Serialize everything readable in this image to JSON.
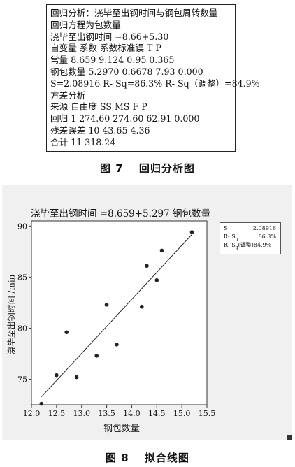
{
  "regression_output": {
    "lines": [
      "回归分析：浇毕至出钢时间与钢包周转数量",
      "回归方程为包数量",
      "浇毕至出钢时间 =8.66+5.30",
      "自变量 系数 系数标准误 T P",
      "常量 8.659 9.124 0.95 0.365",
      "钢包数量 5.2970 0.6678 7.93 0.000",
      "S=2.08916 R- Sq=86.3% R- Sq（调整）=84.9%",
      "方差分析",
      "来源 自由度 SS MS F P",
      "回归 1 274.60 274.60 62.91 0.000",
      "残差误差 10 43.65 4.36",
      "合计 11 318.24"
    ]
  },
  "figure7_caption": "图 7　 回归分析图",
  "figure8_caption": "图 8　 拟合线图",
  "plot": {
    "title": "浇毕至出钢时间 =8.659+5.297 钢包数量",
    "stats": [
      {
        "label": "S",
        "value": "2.08916"
      },
      {
        "label": "R- S",
        "sub": "q",
        "value": "86.3%"
      },
      {
        "label": "R- S",
        "sub": "q",
        "suffix": "(调整)",
        "value": "84.9%"
      }
    ]
  },
  "chart_data": {
    "type": "scatter",
    "title": "浇毕至出钢时间 =8.659+5.297 钢包数量",
    "xlabel": "钢包数量",
    "ylabel": "浇毕至出钢时间 /min",
    "xlim": [
      12.0,
      15.5
    ],
    "ylim": [
      72.5,
      90.5
    ],
    "xticks": [
      12.0,
      12.5,
      13.0,
      13.5,
      14.0,
      14.5,
      15.0,
      15.5
    ],
    "xtick_labels": [
      "12.0",
      "12.5",
      "13.0",
      "13.5",
      "14.0",
      "14.5",
      "15.0",
      "15.5"
    ],
    "yticks": [
      75,
      80,
      85,
      90
    ],
    "ytick_labels": [
      "75",
      "80",
      "85",
      "90"
    ],
    "points": [
      {
        "x": 12.2,
        "y": 72.6
      },
      {
        "x": 12.5,
        "y": 75.4
      },
      {
        "x": 12.7,
        "y": 79.6
      },
      {
        "x": 12.9,
        "y": 75.2
      },
      {
        "x": 13.3,
        "y": 77.3
      },
      {
        "x": 13.5,
        "y": 82.3
      },
      {
        "x": 13.7,
        "y": 78.4
      },
      {
        "x": 14.2,
        "y": 82.1
      },
      {
        "x": 14.3,
        "y": 86.1
      },
      {
        "x": 14.5,
        "y": 84.7
      },
      {
        "x": 14.6,
        "y": 87.6
      },
      {
        "x": 15.2,
        "y": 89.4
      }
    ],
    "fit_line": {
      "intercept": 8.659,
      "slope": 5.297,
      "x_range": [
        12.2,
        15.2
      ]
    },
    "grid": false,
    "legend": "none"
  }
}
